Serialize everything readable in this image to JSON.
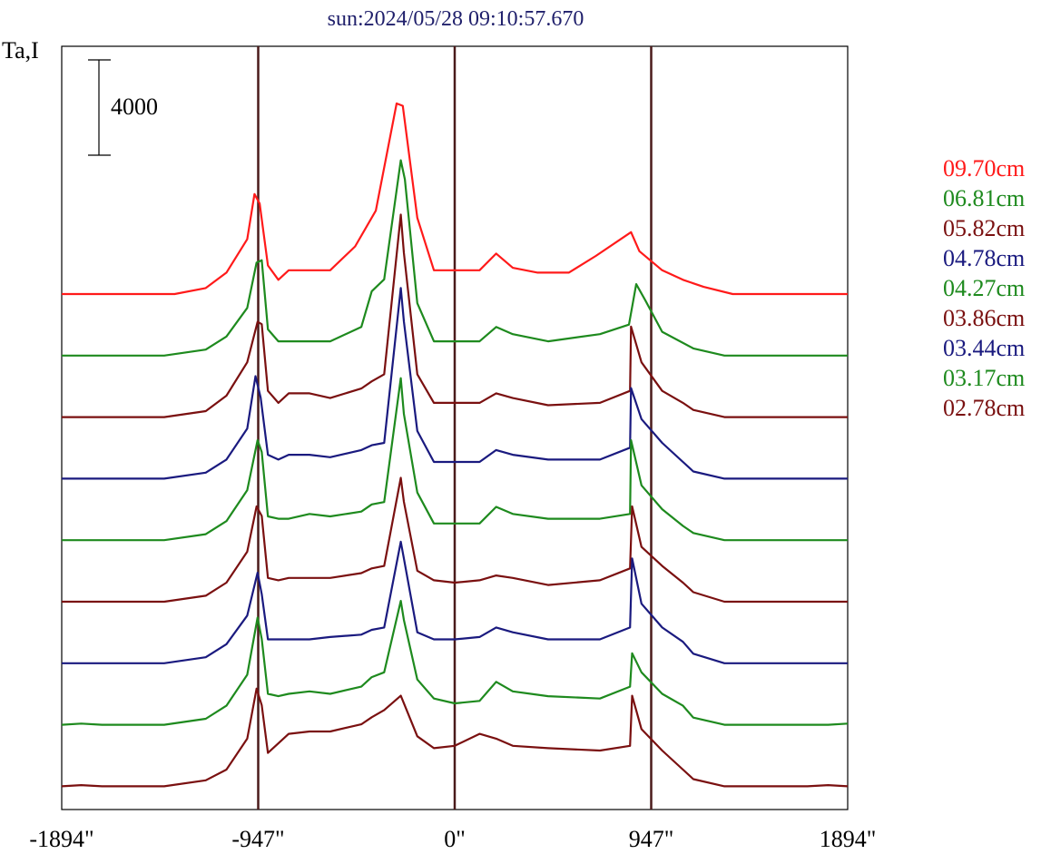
{
  "chart_data": {
    "type": "line",
    "title": "sun:2024/05/28 09:10:57.670",
    "ylabel": "Ta,I",
    "scale_bar_label": "4000",
    "x_ticks": [
      {
        "value": -1894,
        "label": "-1894\""
      },
      {
        "value": -947,
        "label": "-947\""
      },
      {
        "value": 0,
        "label": "0\""
      },
      {
        "value": 947,
        "label": "947\""
      },
      {
        "value": 1894,
        "label": "1894\""
      }
    ],
    "xlim": [
      -1894,
      1894
    ],
    "reference_lines_x": [
      -947,
      0,
      947
    ],
    "reference_line_color": "#4a1a1a",
    "series": [
      {
        "name": "09.70cm",
        "color": "#ff1a1a",
        "points": [
          [
            -1894,
            0
          ],
          [
            -1350,
            0
          ],
          [
            -1200,
            250
          ],
          [
            -1100,
            900
          ],
          [
            -1000,
            2300
          ],
          [
            -965,
            4200
          ],
          [
            -940,
            3800
          ],
          [
            -900,
            1200
          ],
          [
            -850,
            600
          ],
          [
            -800,
            1000
          ],
          [
            -700,
            1000
          ],
          [
            -600,
            1000
          ],
          [
            -480,
            2000
          ],
          [
            -380,
            3500
          ],
          [
            -280,
            8000
          ],
          [
            -250,
            7900
          ],
          [
            -180,
            3200
          ],
          [
            -100,
            1000
          ],
          [
            0,
            1000
          ],
          [
            120,
            1000
          ],
          [
            200,
            1700
          ],
          [
            280,
            1100
          ],
          [
            400,
            900
          ],
          [
            550,
            900
          ],
          [
            680,
            1600
          ],
          [
            850,
            2600
          ],
          [
            890,
            1800
          ],
          [
            1000,
            1000
          ],
          [
            1100,
            600
          ],
          [
            1200,
            300
          ],
          [
            1340,
            0
          ],
          [
            1894,
            0
          ]
        ]
      },
      {
        "name": "06.81cm",
        "color": "#1e8a1e",
        "points": [
          [
            -1894,
            0
          ],
          [
            -1400,
            0
          ],
          [
            -1200,
            250
          ],
          [
            -1100,
            800
          ],
          [
            -1000,
            2000
          ],
          [
            -955,
            3900
          ],
          [
            -930,
            4000
          ],
          [
            -900,
            1100
          ],
          [
            -850,
            600
          ],
          [
            -800,
            600
          ],
          [
            -600,
            600
          ],
          [
            -450,
            1200
          ],
          [
            -400,
            2700
          ],
          [
            -340,
            3200
          ],
          [
            -260,
            8200
          ],
          [
            -240,
            7400
          ],
          [
            -180,
            2200
          ],
          [
            -100,
            600
          ],
          [
            0,
            600
          ],
          [
            120,
            600
          ],
          [
            200,
            1200
          ],
          [
            280,
            900
          ],
          [
            450,
            600
          ],
          [
            700,
            900
          ],
          [
            840,
            1300
          ],
          [
            875,
            3000
          ],
          [
            920,
            2300
          ],
          [
            1000,
            1000
          ],
          [
            1150,
            300
          ],
          [
            1300,
            0
          ],
          [
            1894,
            0
          ]
        ]
      },
      {
        "name": "05.82cm",
        "color": "#7a1010",
        "points": [
          [
            -1894,
            0
          ],
          [
            -1400,
            0
          ],
          [
            -1200,
            250
          ],
          [
            -1100,
            900
          ],
          [
            -1000,
            2300
          ],
          [
            -950,
            4000
          ],
          [
            -930,
            3900
          ],
          [
            -900,
            1100
          ],
          [
            -850,
            600
          ],
          [
            -800,
            1000
          ],
          [
            -700,
            1000
          ],
          [
            -600,
            800
          ],
          [
            -450,
            1200
          ],
          [
            -400,
            1500
          ],
          [
            -340,
            1800
          ],
          [
            -260,
            8500
          ],
          [
            -245,
            6900
          ],
          [
            -180,
            1800
          ],
          [
            -100,
            600
          ],
          [
            0,
            600
          ],
          [
            120,
            600
          ],
          [
            200,
            1000
          ],
          [
            280,
            800
          ],
          [
            450,
            500
          ],
          [
            700,
            600
          ],
          [
            845,
            1100
          ],
          [
            850,
            3800
          ],
          [
            900,
            2300
          ],
          [
            1000,
            1100
          ],
          [
            1100,
            600
          ],
          [
            1150,
            300
          ],
          [
            1300,
            0
          ],
          [
            1894,
            0
          ]
        ]
      },
      {
        "name": "04.78cm",
        "color": "#1a1a7f",
        "points": [
          [
            -1894,
            0
          ],
          [
            -1400,
            0
          ],
          [
            -1200,
            250
          ],
          [
            -1100,
            800
          ],
          [
            -1000,
            2100
          ],
          [
            -960,
            4300
          ],
          [
            -935,
            3400
          ],
          [
            -900,
            1000
          ],
          [
            -850,
            800
          ],
          [
            -800,
            1000
          ],
          [
            -700,
            1000
          ],
          [
            -600,
            900
          ],
          [
            -450,
            1200
          ],
          [
            -400,
            1400
          ],
          [
            -340,
            1500
          ],
          [
            -260,
            8000
          ],
          [
            -245,
            6600
          ],
          [
            -180,
            2000
          ],
          [
            -100,
            700
          ],
          [
            0,
            700
          ],
          [
            120,
            700
          ],
          [
            200,
            1200
          ],
          [
            280,
            1000
          ],
          [
            450,
            800
          ],
          [
            700,
            800
          ],
          [
            845,
            1300
          ],
          [
            850,
            3800
          ],
          [
            900,
            2500
          ],
          [
            1000,
            1500
          ],
          [
            1100,
            700
          ],
          [
            1150,
            300
          ],
          [
            1300,
            0
          ],
          [
            1894,
            0
          ]
        ]
      },
      {
        "name": "04.27cm",
        "color": "#1e8a1e",
        "points": [
          [
            -1894,
            0
          ],
          [
            -1400,
            0
          ],
          [
            -1200,
            250
          ],
          [
            -1100,
            800
          ],
          [
            -1000,
            2100
          ],
          [
            -950,
            4200
          ],
          [
            -930,
            3700
          ],
          [
            -900,
            1000
          ],
          [
            -850,
            900
          ],
          [
            -800,
            900
          ],
          [
            -700,
            1100
          ],
          [
            -600,
            1000
          ],
          [
            -450,
            1200
          ],
          [
            -400,
            1500
          ],
          [
            -340,
            1600
          ],
          [
            -260,
            6800
          ],
          [
            -245,
            5300
          ],
          [
            -180,
            2000
          ],
          [
            -100,
            700
          ],
          [
            0,
            700
          ],
          [
            120,
            700
          ],
          [
            200,
            1400
          ],
          [
            280,
            1100
          ],
          [
            450,
            900
          ],
          [
            700,
            900
          ],
          [
            845,
            1100
          ],
          [
            850,
            4200
          ],
          [
            900,
            2300
          ],
          [
            1000,
            1300
          ],
          [
            1100,
            600
          ],
          [
            1150,
            300
          ],
          [
            1300,
            0
          ],
          [
            1894,
            0
          ]
        ]
      },
      {
        "name": "03.86cm",
        "color": "#7a1010",
        "points": [
          [
            -1894,
            0
          ],
          [
            -1400,
            0
          ],
          [
            -1200,
            250
          ],
          [
            -1100,
            800
          ],
          [
            -1000,
            2100
          ],
          [
            -955,
            4000
          ],
          [
            -930,
            3600
          ],
          [
            -900,
            1000
          ],
          [
            -850,
            900
          ],
          [
            -800,
            1000
          ],
          [
            -700,
            1000
          ],
          [
            -600,
            1000
          ],
          [
            -450,
            1200
          ],
          [
            -400,
            1400
          ],
          [
            -340,
            1500
          ],
          [
            -260,
            5200
          ],
          [
            -245,
            4200
          ],
          [
            -180,
            1300
          ],
          [
            -100,
            900
          ],
          [
            0,
            800
          ],
          [
            120,
            900
          ],
          [
            200,
            1100
          ],
          [
            280,
            1000
          ],
          [
            450,
            700
          ],
          [
            700,
            900
          ],
          [
            845,
            1400
          ],
          [
            855,
            4000
          ],
          [
            900,
            2300
          ],
          [
            1000,
            1500
          ],
          [
            1100,
            800
          ],
          [
            1150,
            400
          ],
          [
            1300,
            0
          ],
          [
            1894,
            0
          ]
        ]
      },
      {
        "name": "03.44cm",
        "color": "#1a1a7f",
        "points": [
          [
            -1894,
            0
          ],
          [
            -1400,
            0
          ],
          [
            -1200,
            250
          ],
          [
            -1100,
            800
          ],
          [
            -1000,
            2000
          ],
          [
            -950,
            3800
          ],
          [
            -930,
            2900
          ],
          [
            -900,
            1000
          ],
          [
            -850,
            1000
          ],
          [
            -800,
            1000
          ],
          [
            -700,
            1000
          ],
          [
            -600,
            1100
          ],
          [
            -450,
            1200
          ],
          [
            -400,
            1400
          ],
          [
            -340,
            1500
          ],
          [
            -260,
            5100
          ],
          [
            -245,
            4400
          ],
          [
            -180,
            1300
          ],
          [
            -100,
            1000
          ],
          [
            0,
            1000
          ],
          [
            120,
            1100
          ],
          [
            200,
            1500
          ],
          [
            280,
            1300
          ],
          [
            450,
            1000
          ],
          [
            700,
            1000
          ],
          [
            845,
            1500
          ],
          [
            855,
            4400
          ],
          [
            900,
            2500
          ],
          [
            1000,
            1500
          ],
          [
            1100,
            900
          ],
          [
            1150,
            400
          ],
          [
            1300,
            0
          ],
          [
            1894,
            0
          ]
        ]
      },
      {
        "name": "03.17cm",
        "color": "#1e8a1e",
        "points": [
          [
            -1894,
            0
          ],
          [
            -1800,
            50
          ],
          [
            -1700,
            0
          ],
          [
            -1400,
            0
          ],
          [
            -1200,
            250
          ],
          [
            -1100,
            800
          ],
          [
            -1000,
            2100
          ],
          [
            -950,
            4500
          ],
          [
            -930,
            3600
          ],
          [
            -900,
            1300
          ],
          [
            -850,
            1200
          ],
          [
            -800,
            1300
          ],
          [
            -700,
            1400
          ],
          [
            -600,
            1300
          ],
          [
            -450,
            1600
          ],
          [
            -400,
            2000
          ],
          [
            -340,
            2200
          ],
          [
            -260,
            5200
          ],
          [
            -245,
            4400
          ],
          [
            -180,
            1900
          ],
          [
            -100,
            1100
          ],
          [
            0,
            900
          ],
          [
            120,
            1000
          ],
          [
            200,
            1800
          ],
          [
            280,
            1400
          ],
          [
            450,
            1200
          ],
          [
            700,
            1100
          ],
          [
            845,
            1600
          ],
          [
            855,
            3000
          ],
          [
            900,
            2200
          ],
          [
            1000,
            1300
          ],
          [
            1100,
            800
          ],
          [
            1150,
            300
          ],
          [
            1300,
            0
          ],
          [
            1800,
            0
          ],
          [
            1894,
            50
          ]
        ]
      },
      {
        "name": "02.78cm",
        "color": "#7a1010",
        "points": [
          [
            -1894,
            0
          ],
          [
            -1800,
            50
          ],
          [
            -1700,
            0
          ],
          [
            -1400,
            0
          ],
          [
            -1200,
            250
          ],
          [
            -1100,
            700
          ],
          [
            -1000,
            2000
          ],
          [
            -955,
            4100
          ],
          [
            -930,
            3400
          ],
          [
            -900,
            1400
          ],
          [
            -850,
            1800
          ],
          [
            -800,
            2200
          ],
          [
            -700,
            2300
          ],
          [
            -600,
            2300
          ],
          [
            -450,
            2600
          ],
          [
            -400,
            2900
          ],
          [
            -340,
            3200
          ],
          [
            -260,
            3800
          ],
          [
            -250,
            3600
          ],
          [
            -180,
            2100
          ],
          [
            -100,
            1600
          ],
          [
            0,
            1700
          ],
          [
            120,
            2200
          ],
          [
            200,
            2000
          ],
          [
            280,
            1700
          ],
          [
            450,
            1600
          ],
          [
            700,
            1500
          ],
          [
            845,
            1700
          ],
          [
            855,
            3800
          ],
          [
            900,
            2400
          ],
          [
            1000,
            1500
          ],
          [
            1100,
            700
          ],
          [
            1150,
            300
          ],
          [
            1300,
            0
          ],
          [
            1700,
            0
          ],
          [
            1800,
            50
          ],
          [
            1894,
            0
          ]
        ]
      }
    ]
  }
}
